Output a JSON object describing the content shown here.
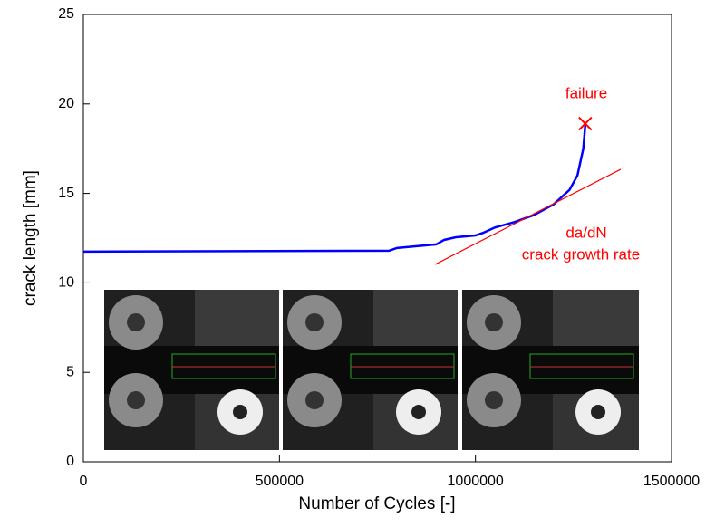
{
  "chart_data": {
    "type": "line",
    "xlabel": "Number of Cycles [-]",
    "ylabel": "crack length [mm]",
    "xlim": [
      0,
      1500000
    ],
    "xticks": [
      0,
      500000,
      1000000,
      1500000
    ],
    "ylim": [
      0,
      25
    ],
    "yticks": [
      0,
      5,
      10,
      15,
      20,
      25
    ],
    "series": [
      {
        "color": "#0000ff",
        "x": [
          0,
          780000,
          800000,
          850000,
          900000,
          920000,
          950000,
          1000000,
          1020000,
          1050000,
          1100000,
          1150000,
          1200000,
          1240000,
          1260000,
          1275000,
          1280000
        ],
        "values": [
          11.75,
          11.8,
          11.95,
          12.05,
          12.15,
          12.4,
          12.55,
          12.65,
          12.8,
          13.1,
          13.4,
          13.8,
          14.4,
          15.2,
          16.0,
          17.5,
          18.8
        ]
      },
      {
        "color": "#ff0000",
        "x": [
          897000,
          1370600
        ],
        "values": [
          11.03,
          16.35
        ]
      }
    ],
    "failure_point": {
      "x": 1280000,
      "y": 18.9,
      "color": "#ff0000"
    },
    "annotations": [
      "failure",
      "da/dN",
      "crack growth rate"
    ]
  }
}
